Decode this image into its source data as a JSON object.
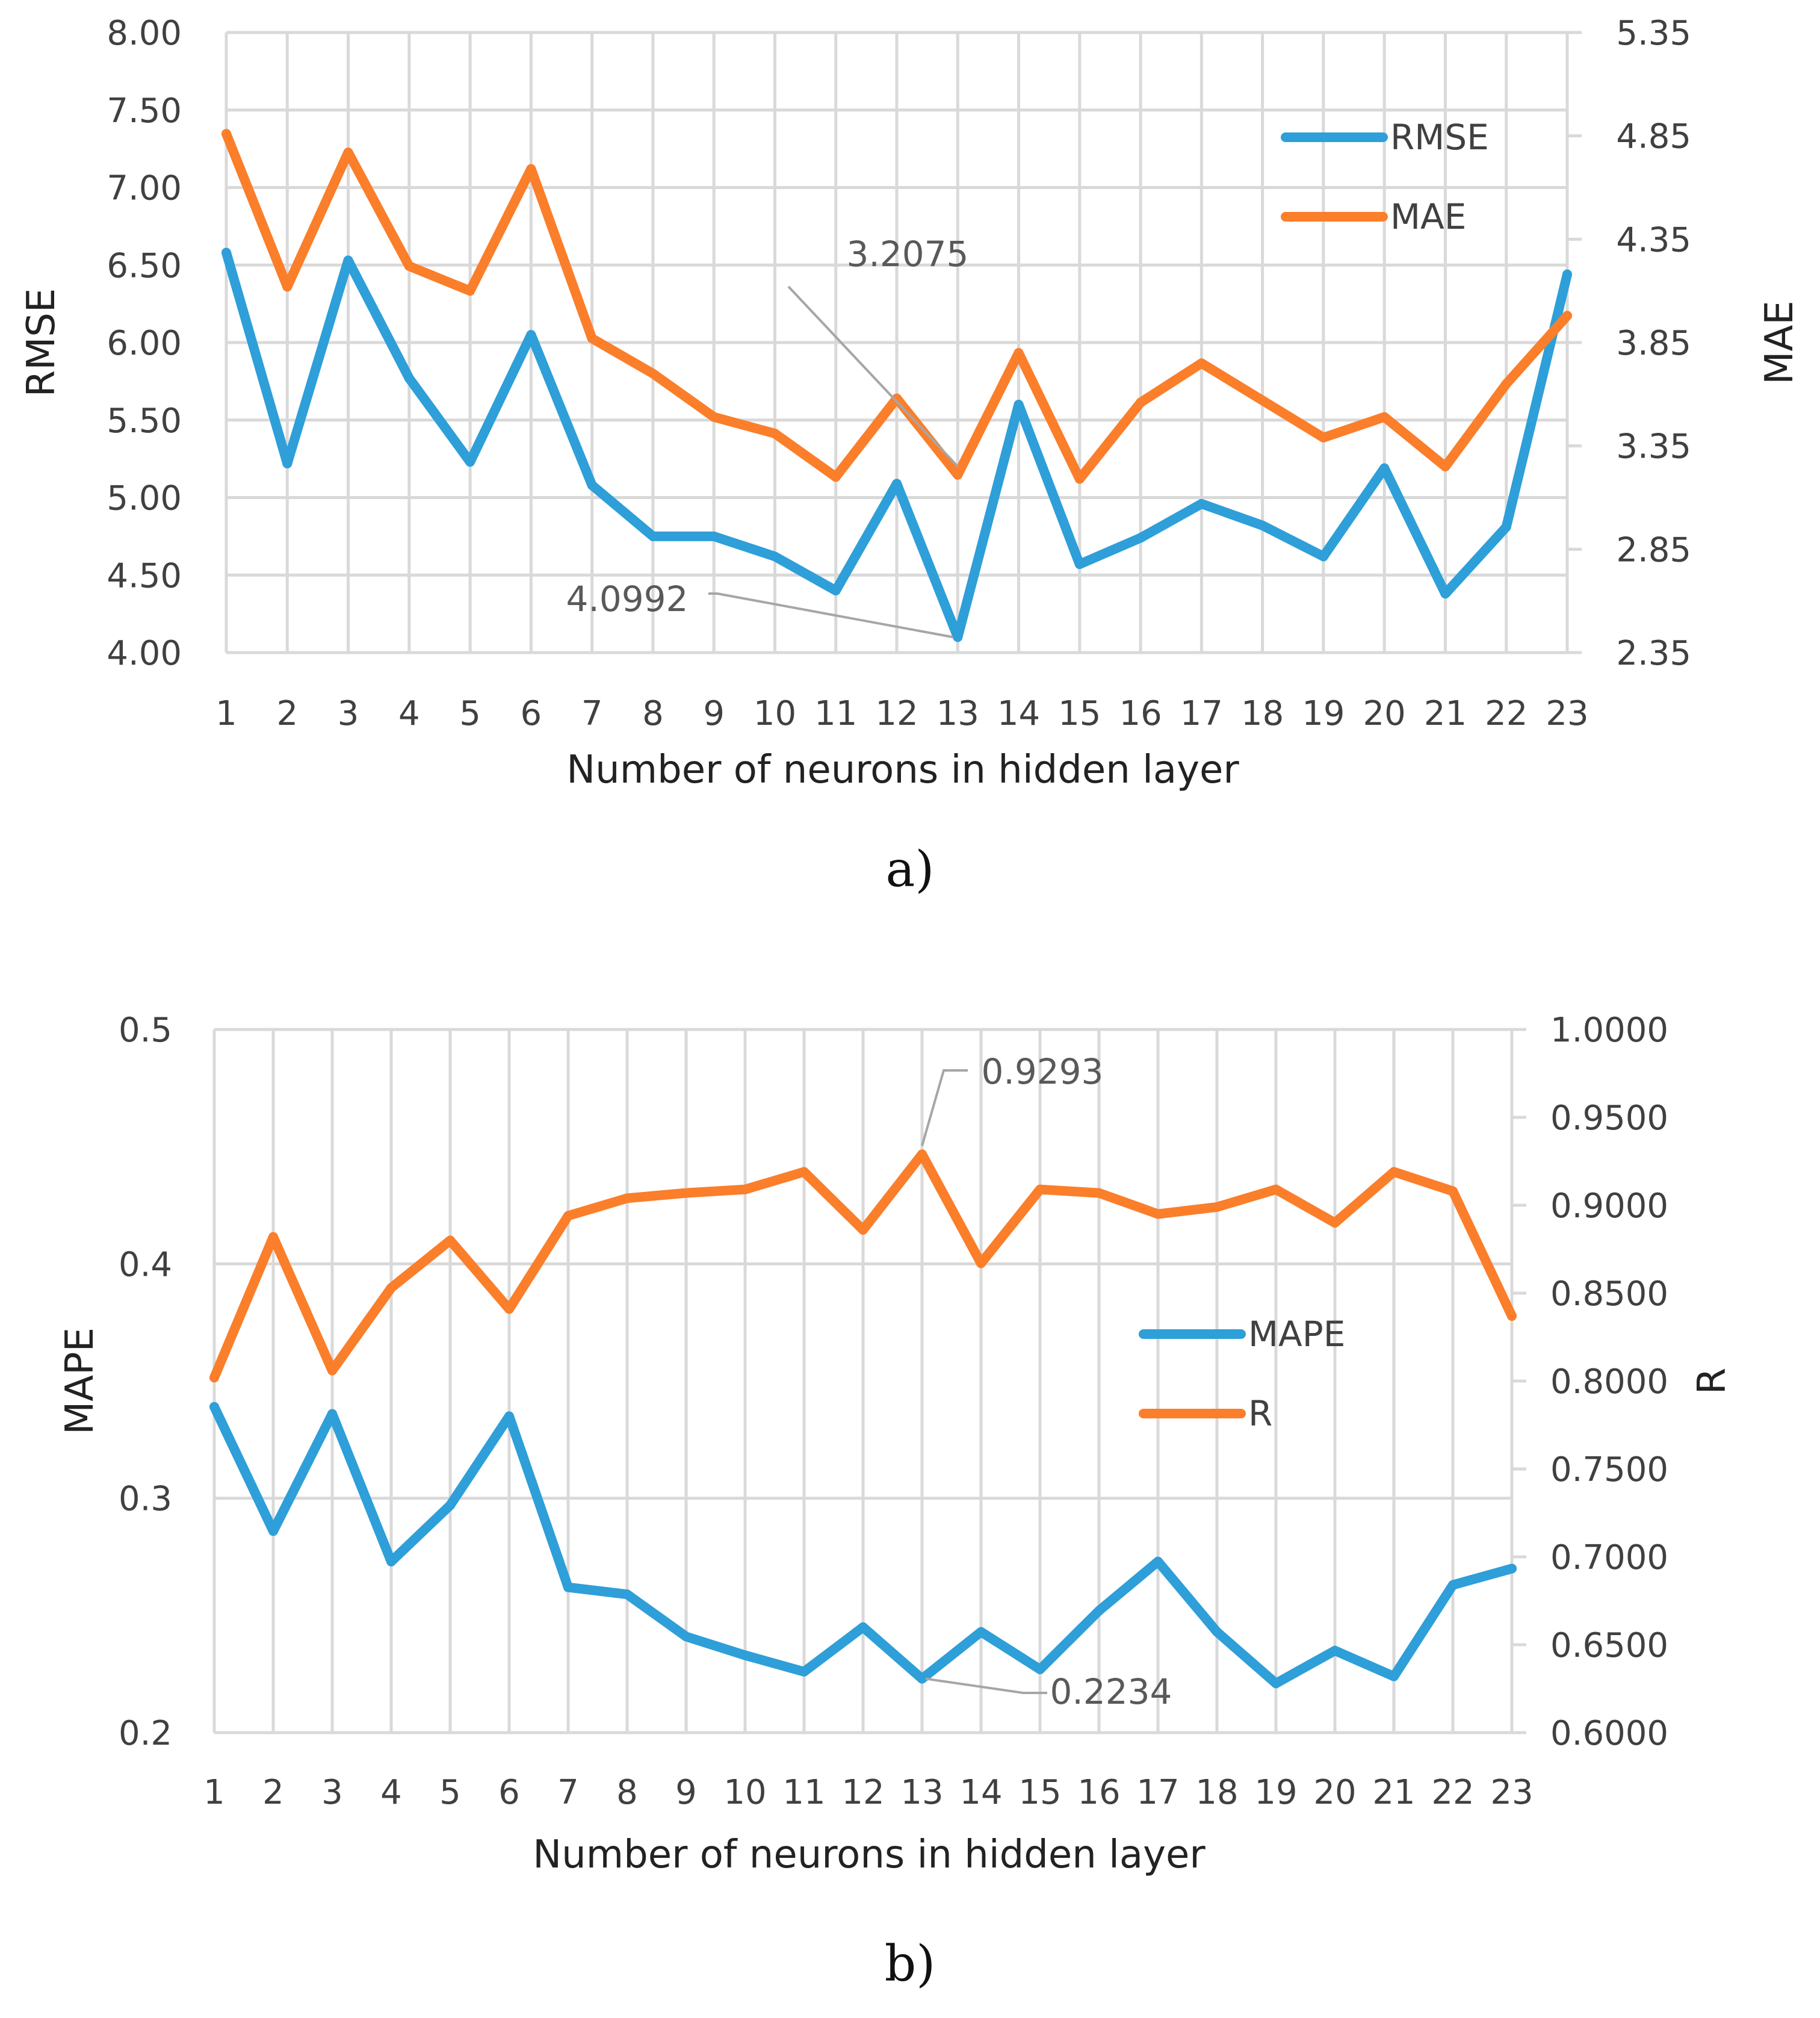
{
  "chart_data": [
    {
      "type": "line",
      "panel": "a)",
      "caption": "a)",
      "xlabel": "Number of neurons in hidden layer",
      "ylabel": "RMSE",
      "y2label": "MAE",
      "x": [
        1,
        2,
        3,
        4,
        5,
        6,
        7,
        8,
        9,
        10,
        11,
        12,
        13,
        14,
        15,
        16,
        17,
        18,
        19,
        20,
        21,
        22,
        23
      ],
      "ylim": [
        4.0,
        8.0
      ],
      "y2lim": [
        2.35,
        5.35
      ],
      "yticks": [
        "4.00",
        "4.50",
        "5.00",
        "5.50",
        "6.00",
        "6.50",
        "7.00",
        "7.50",
        "8.00"
      ],
      "y2ticks": [
        "2.35",
        "2.85",
        "3.35",
        "3.85",
        "4.35",
        "4.85",
        "5.35"
      ],
      "series": [
        {
          "name": "RMSE",
          "axis": "left",
          "color": "#2e9fd8",
          "values": [
            6.58,
            5.22,
            6.53,
            5.77,
            5.23,
            6.05,
            5.08,
            4.75,
            4.75,
            4.62,
            4.4,
            5.09,
            4.1,
            5.6,
            4.57,
            4.74,
            4.96,
            4.82,
            4.62,
            5.19,
            4.38,
            4.81,
            6.44
          ]
        },
        {
          "name": "MAE",
          "axis": "right",
          "color": "#fb7e2a",
          "values": [
            4.86,
            4.12,
            4.77,
            4.22,
            4.1,
            4.69,
            3.87,
            3.7,
            3.49,
            3.41,
            3.2,
            3.58,
            3.21,
            3.8,
            3.19,
            3.56,
            3.75,
            3.57,
            3.39,
            3.49,
            3.25,
            3.65,
            3.98
          ]
        }
      ],
      "legend": [
        "RMSE",
        "MAE"
      ],
      "legend_position": "top-right",
      "annotations": [
        {
          "text": "3.2075",
          "x": 13,
          "series": "MAE"
        },
        {
          "text": "4.0992",
          "x": 13,
          "series": "RMSE"
        }
      ]
    },
    {
      "type": "line",
      "panel": "b)",
      "caption": "b)",
      "xlabel": "Number of neurons in hidden layer",
      "ylabel": "MAPE",
      "y2label": "R",
      "x": [
        1,
        2,
        3,
        4,
        5,
        6,
        7,
        8,
        9,
        10,
        11,
        12,
        13,
        14,
        15,
        16,
        17,
        18,
        19,
        20,
        21,
        22,
        23
      ],
      "ylim": [
        0.2,
        0.5
      ],
      "y2lim": [
        0.6,
        1.0
      ],
      "yticks": [
        "0.2",
        "0.3",
        "0.4",
        "0.5"
      ],
      "y2ticks": [
        "0.6000",
        "0.6500",
        "0.7000",
        "0.7500",
        "0.8000",
        "0.8500",
        "0.9000",
        "0.9500",
        "1.0000"
      ],
      "series": [
        {
          "name": "MAPE",
          "axis": "left",
          "color": "#2e9fd8",
          "values": [
            0.339,
            0.286,
            0.336,
            0.273,
            0.297,
            0.335,
            0.262,
            0.259,
            0.241,
            0.233,
            0.226,
            0.245,
            0.223,
            0.243,
            0.227,
            0.252,
            0.273,
            0.243,
            0.221,
            0.235,
            0.224,
            0.263,
            0.27
          ]
        },
        {
          "name": "R",
          "axis": "right",
          "color": "#fb7e2a",
          "values": [
            0.802,
            0.882,
            0.806,
            0.853,
            0.88,
            0.841,
            0.894,
            0.904,
            0.907,
            0.909,
            0.919,
            0.886,
            0.929,
            0.867,
            0.909,
            0.907,
            0.895,
            0.899,
            0.909,
            0.89,
            0.919,
            0.908,
            0.837
          ]
        }
      ],
      "legend": [
        "MAPE",
        "R"
      ],
      "legend_position": "center-right",
      "annotations": [
        {
          "text": "0.9293",
          "x": 13,
          "series": "R"
        },
        {
          "text": "0.2234",
          "x": 13,
          "series": "MAPE"
        }
      ]
    }
  ]
}
